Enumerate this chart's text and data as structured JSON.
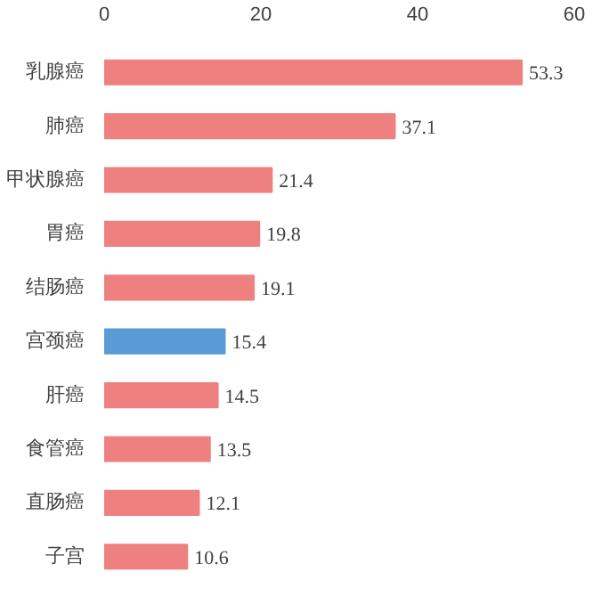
{
  "chart_data": {
    "type": "bar",
    "orientation": "horizontal",
    "categories": [
      "乳腺癌",
      "肺癌",
      "甲状腺癌",
      "胃癌",
      "结肠癌",
      "宫颈癌",
      "肝癌",
      "食管癌",
      "直肠癌",
      "子宫"
    ],
    "values": [
      53.3,
      37.1,
      21.4,
      19.8,
      19.1,
      15.4,
      14.5,
      13.5,
      12.1,
      10.6
    ],
    "colors": [
      "#ee8080",
      "#ee8080",
      "#ee8080",
      "#ee8080",
      "#ee8080",
      "#5b9bd5",
      "#ee8080",
      "#ee8080",
      "#ee8080",
      "#ee8080"
    ],
    "xlim": [
      0,
      60
    ],
    "xticks": [
      0,
      20,
      40,
      60
    ],
    "data_labels": true,
    "grid": false
  }
}
